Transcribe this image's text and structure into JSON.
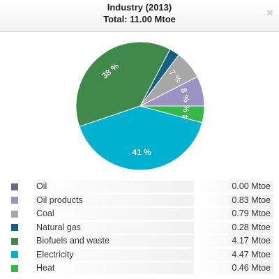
{
  "header": {
    "title": "Industry (2013)",
    "subtitle": "Total: 11.00 Mtoe",
    "close_icon": "close-icon"
  },
  "chart_data": {
    "type": "pie",
    "title": "Industry (2013)",
    "subtitle": "Total: 11.00 Mtoe",
    "unit": "Mtoe",
    "categories": [
      "Oil",
      "Oil products",
      "Coal",
      "Natural gas",
      "Biofuels and waste",
      "Electricity",
      "Heat"
    ],
    "values": [
      0.0,
      0.83,
      0.79,
      0.28,
      4.17,
      4.47,
      0.46
    ],
    "value_labels": [
      "0.00 Mtoe",
      "0.83 Mtoe",
      "0.79 Mtoe",
      "0.28 Mtoe",
      "4.17 Mtoe",
      "4.47 Mtoe",
      "0.46 Mtoe"
    ],
    "slice_labels": [
      "",
      "8 %",
      "7 %",
      "",
      "38 %",
      "41 %",
      "4 %"
    ],
    "colors": [
      "#6b6590",
      "#9b93c4",
      "#a7a7a7",
      "#135f86",
      "#3f8a4b",
      "#00b2cf",
      "#35b749"
    ],
    "legend_position": "bottom"
  }
}
